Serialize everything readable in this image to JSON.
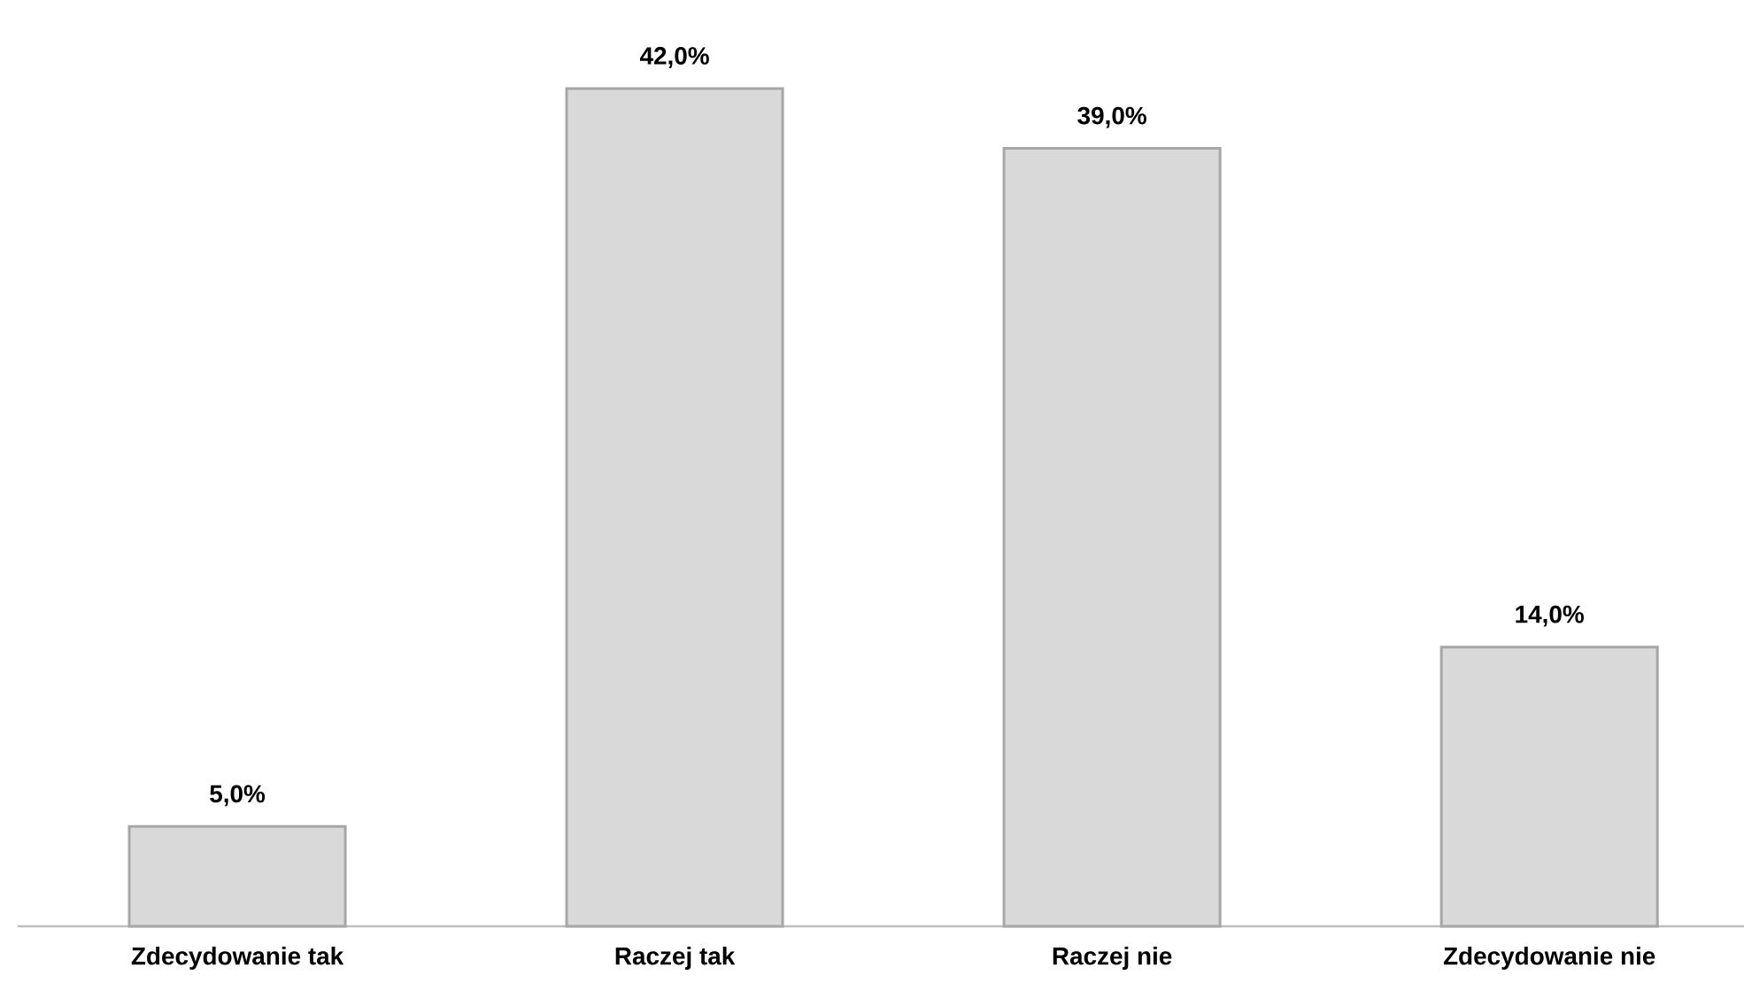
{
  "chart_data": {
    "type": "bar",
    "categories": [
      "Zdecydowanie tak",
      "Raczej tak",
      "Raczej nie",
      "Zdecydowanie nie"
    ],
    "values": [
      5.0,
      42.0,
      39.0,
      14.0
    ],
    "value_labels": [
      "5,0%",
      "42,0%",
      "39,0%",
      "14,0%"
    ],
    "color": "#d9d9d9"
  }
}
